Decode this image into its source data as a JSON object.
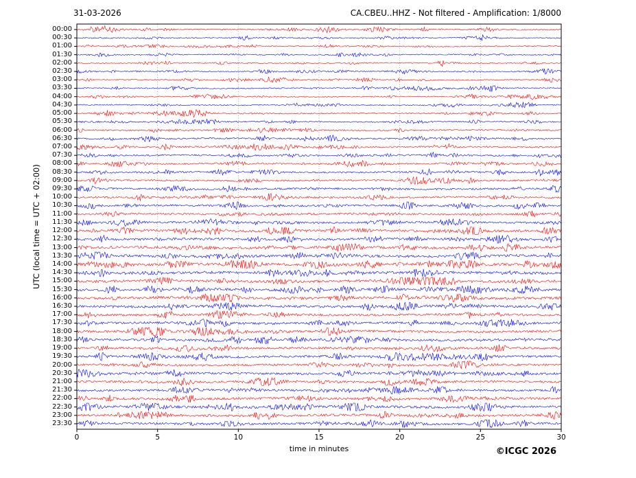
{
  "header": {
    "date": "31-03-2026",
    "title": "CA.CBEU..HHZ - Not filtered - Amplification: 1/8000"
  },
  "footer": {
    "copyright": "©ICGC 2026"
  },
  "chart_data": {
    "type": "line",
    "subtype": "helicorder-seismogram",
    "title": "CA.CBEU..HHZ - Not filtered - Amplification: 1/8000",
    "date": "31-03-2026",
    "xlabel": "time in minutes",
    "ylabel": "UTC (local time = UTC + 02:00)",
    "x_range": [
      0,
      30
    ],
    "x_ticks": [
      0,
      5,
      10,
      15,
      20,
      25,
      30
    ],
    "grid": "vertical dotted gridlines at 5-minute intervals",
    "legend": "none",
    "line_colors": {
      "hour_rows": "#ff0000",
      "half_hour_rows": "#0000ff"
    },
    "grid_color": "#999999",
    "frame_color": "#000000",
    "row_minutes_span": 30,
    "description": "48 half-hour seismic trace rows of continuous ambient noise with intermittent spindle-shaped bursts; quiet overnight (00:00-06:00), activity increasing through the day, strongest 12:00-19:30",
    "rows": [
      {
        "time": "00:00",
        "color": "#ff0000",
        "activity": 0.75
      },
      {
        "time": "00:30",
        "color": "#0000ff",
        "activity": 0.7
      },
      {
        "time": "01:00",
        "color": "#ff0000",
        "activity": 0.7
      },
      {
        "time": "01:30",
        "color": "#0000ff",
        "activity": 0.65
      },
      {
        "time": "02:00",
        "color": "#ff0000",
        "activity": 0.7
      },
      {
        "time": "02:30",
        "color": "#0000ff",
        "activity": 0.65
      },
      {
        "time": "03:00",
        "color": "#ff0000",
        "activity": 0.7
      },
      {
        "time": "03:30",
        "color": "#0000ff",
        "activity": 0.7
      },
      {
        "time": "04:00",
        "color": "#ff0000",
        "activity": 0.65
      },
      {
        "time": "04:30",
        "color": "#0000ff",
        "activity": 0.7
      },
      {
        "time": "05:00",
        "color": "#ff0000",
        "activity": 0.75
      },
      {
        "time": "05:30",
        "color": "#0000ff",
        "activity": 0.8
      },
      {
        "time": "06:00",
        "color": "#ff0000",
        "activity": 0.9
      },
      {
        "time": "06:30",
        "color": "#0000ff",
        "activity": 0.95
      },
      {
        "time": "07:00",
        "color": "#ff0000",
        "activity": 1.0
      },
      {
        "time": "07:30",
        "color": "#0000ff",
        "activity": 1.0
      },
      {
        "time": "08:00",
        "color": "#ff0000",
        "activity": 1.05
      },
      {
        "time": "08:30",
        "color": "#0000ff",
        "activity": 1.1
      },
      {
        "time": "09:00",
        "color": "#ff0000",
        "activity": 1.1
      },
      {
        "time": "09:30",
        "color": "#0000ff",
        "activity": 1.15
      },
      {
        "time": "10:00",
        "color": "#ff0000",
        "activity": 1.15
      },
      {
        "time": "10:30",
        "color": "#0000ff",
        "activity": 1.2
      },
      {
        "time": "11:00",
        "color": "#ff0000",
        "activity": 1.2
      },
      {
        "time": "11:30",
        "color": "#0000ff",
        "activity": 1.25
      },
      {
        "time": "12:00",
        "color": "#ff0000",
        "activity": 1.5
      },
      {
        "time": "12:30",
        "color": "#0000ff",
        "activity": 1.55
      },
      {
        "time": "13:00",
        "color": "#ff0000",
        "activity": 1.6
      },
      {
        "time": "13:30",
        "color": "#0000ff",
        "activity": 1.65
      },
      {
        "time": "14:00",
        "color": "#ff0000",
        "activity": 1.75
      },
      {
        "time": "14:30",
        "color": "#0000ff",
        "activity": 1.7
      },
      {
        "time": "15:00",
        "color": "#ff0000",
        "activity": 1.65
      },
      {
        "time": "15:30",
        "color": "#0000ff",
        "activity": 1.6
      },
      {
        "time": "16:00",
        "color": "#ff0000",
        "activity": 1.7
      },
      {
        "time": "16:30",
        "color": "#0000ff",
        "activity": 1.6
      },
      {
        "time": "17:00",
        "color": "#ff0000",
        "activity": 1.45
      },
      {
        "time": "17:30",
        "color": "#0000ff",
        "activity": 1.5
      },
      {
        "time": "18:00",
        "color": "#ff0000",
        "activity": 1.55
      },
      {
        "time": "18:30",
        "color": "#0000ff",
        "activity": 1.5
      },
      {
        "time": "19:00",
        "color": "#ff0000",
        "activity": 1.45
      },
      {
        "time": "19:30",
        "color": "#0000ff",
        "activity": 1.4
      },
      {
        "time": "20:00",
        "color": "#ff0000",
        "activity": 1.35
      },
      {
        "time": "20:30",
        "color": "#0000ff",
        "activity": 1.4
      },
      {
        "time": "21:00",
        "color": "#ff0000",
        "activity": 1.45
      },
      {
        "time": "21:30",
        "color": "#0000ff",
        "activity": 1.4
      },
      {
        "time": "22:00",
        "color": "#ff0000",
        "activity": 1.5
      },
      {
        "time": "22:30",
        "color": "#0000ff",
        "activity": 1.55
      },
      {
        "time": "23:00",
        "color": "#ff0000",
        "activity": 1.5
      },
      {
        "time": "23:30",
        "color": "#0000ff",
        "activity": 1.45
      }
    ]
  }
}
